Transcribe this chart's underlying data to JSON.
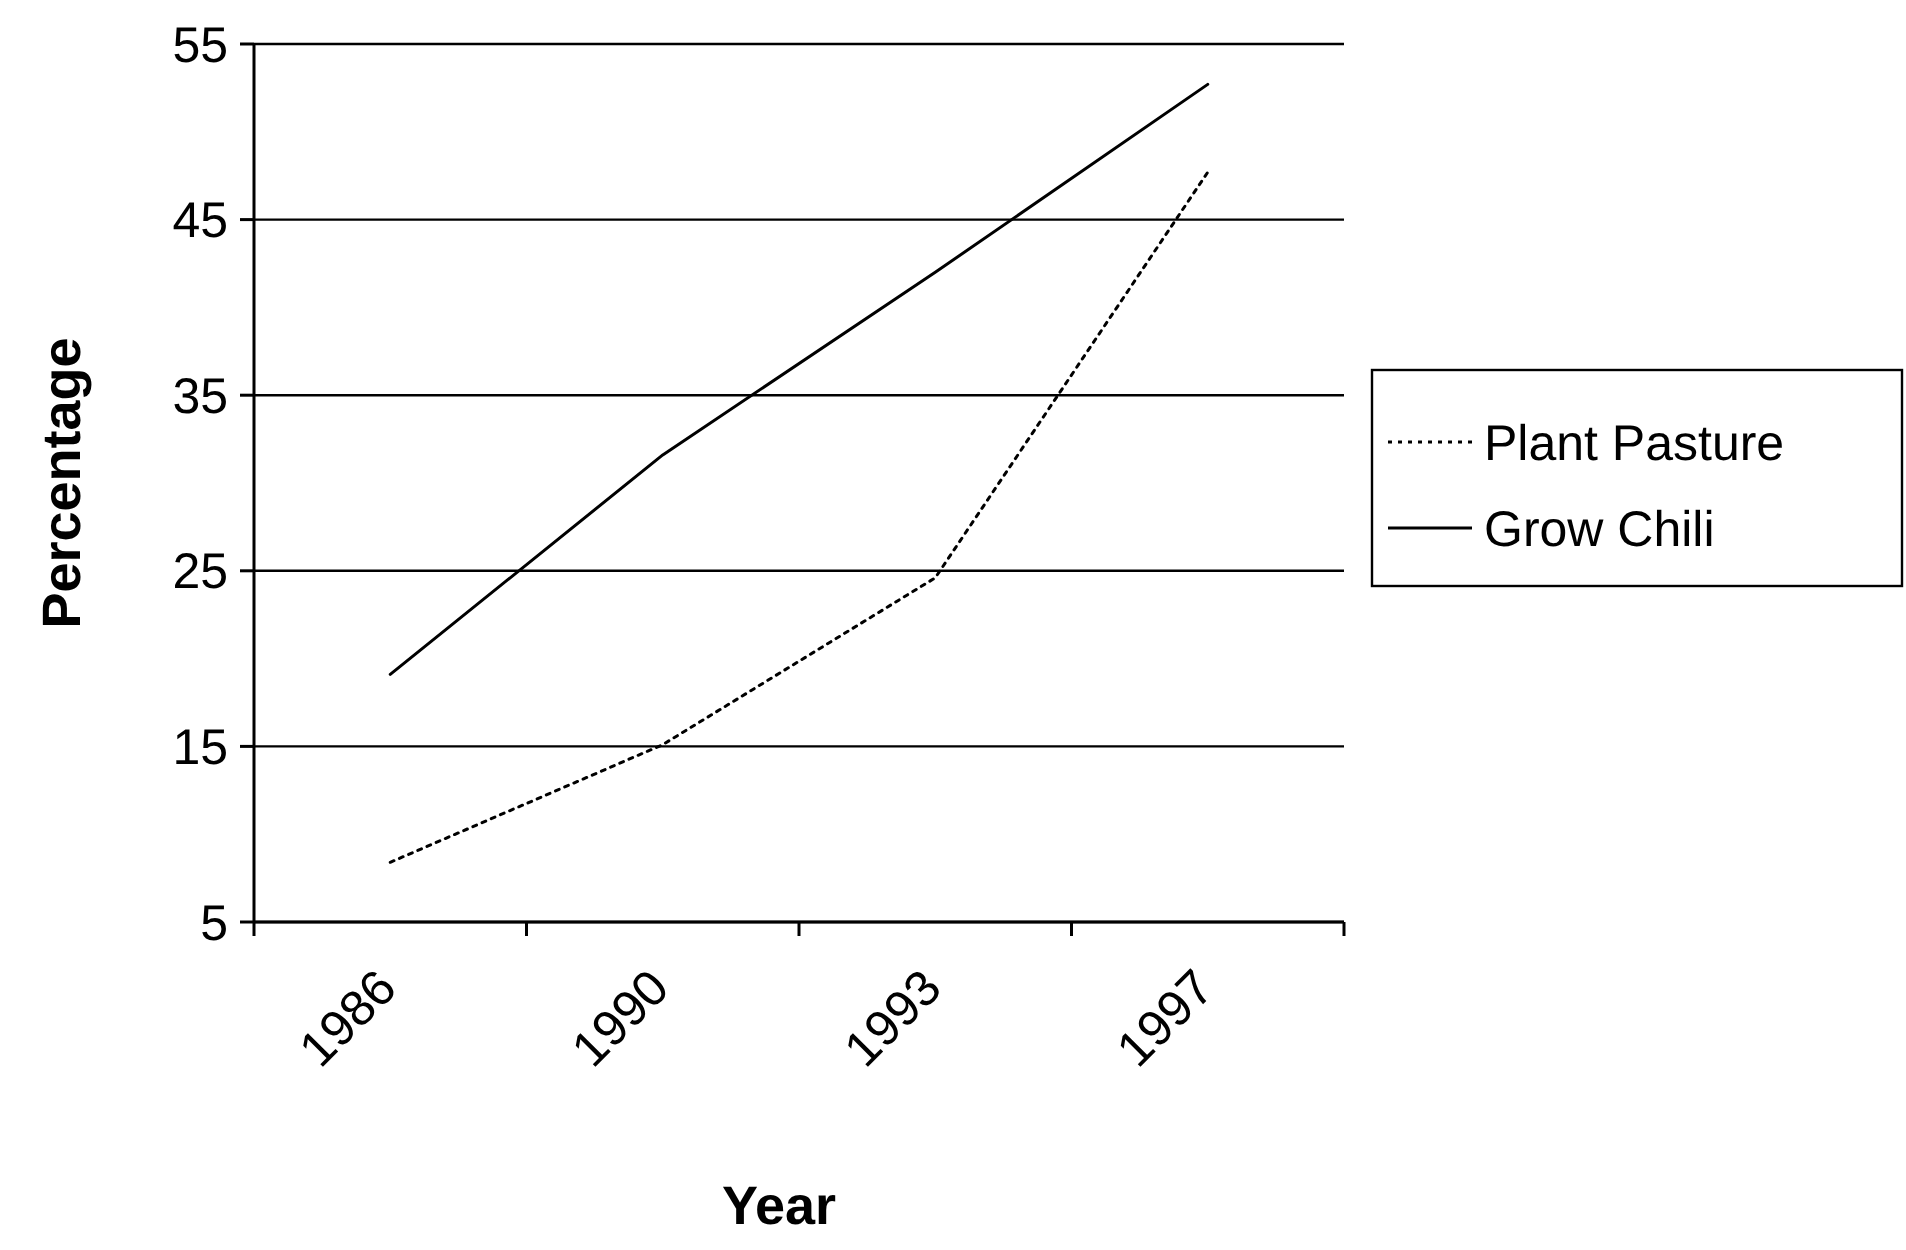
{
  "chart_data": {
    "type": "line",
    "xlabel": "Year",
    "ylabel": "Percentage",
    "categories": [
      "1986",
      "1990",
      "1993",
      "1997"
    ],
    "series": [
      {
        "name": "Plant Pasture",
        "color": "#000000",
        "line_style": "dotted",
        "values": [
          8.4,
          15.1,
          24.6,
          47.7
        ]
      },
      {
        "name": "Grow Chili",
        "color": "#000000",
        "line_style": "solid",
        "values": [
          19.1,
          31.6,
          42,
          52.7
        ]
      }
    ],
    "ylim": [
      5,
      55
    ],
    "yticks": [
      5,
      15,
      25,
      35,
      45,
      55
    ],
    "grid": "y",
    "legend": "right",
    "marker": "none"
  }
}
